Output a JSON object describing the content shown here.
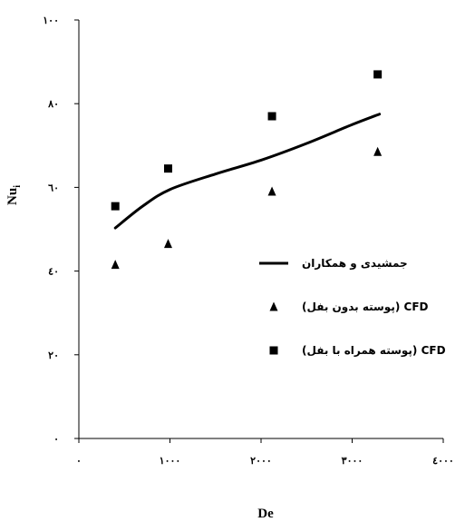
{
  "chart_data": {
    "type": "scatter",
    "xlabel": "De",
    "ylabel": "Nu",
    "ylabel_sub": "i",
    "xlim": [
      0,
      4000
    ],
    "ylim": [
      0,
      100
    ],
    "x_ticks": [
      0,
      1000,
      2000,
      3000,
      4000
    ],
    "x_tick_labels": [
      "٠",
      "١٠٠٠",
      "٢٠٠٠",
      "٣٠٠٠",
      "٤٠٠٠"
    ],
    "y_ticks": [
      0,
      20,
      40,
      60,
      80,
      100
    ],
    "y_tick_labels": [
      "٠",
      "٢٠",
      "٤٠",
      "٦٠",
      "٨٠",
      "١٠٠"
    ],
    "grid": false,
    "legend_position": "center-right",
    "series": [
      {
        "name": "جمشیدی و همکاران",
        "type": "line",
        "color": "#000000",
        "x": [
          400,
          700,
          1000,
          1500,
          2000,
          2500,
          3000,
          3300
        ],
        "y": [
          50.3,
          55.5,
          59.5,
          63.2,
          66.5,
          70.5,
          75.0,
          77.5
        ]
      },
      {
        "name": "(پوسته بدون بفل) CFD",
        "type": "scatter",
        "marker": "triangle",
        "color": "#000000",
        "x": [
          400,
          980,
          2120,
          3280
        ],
        "y": [
          41.5,
          46.5,
          59.0,
          68.5
        ]
      },
      {
        "name": "(پوسته همراه با بفل) CFD",
        "type": "scatter",
        "marker": "square",
        "color": "#000000",
        "x": [
          400,
          980,
          2120,
          3280
        ],
        "y": [
          55.5,
          64.5,
          77.0,
          87.0
        ]
      }
    ]
  }
}
